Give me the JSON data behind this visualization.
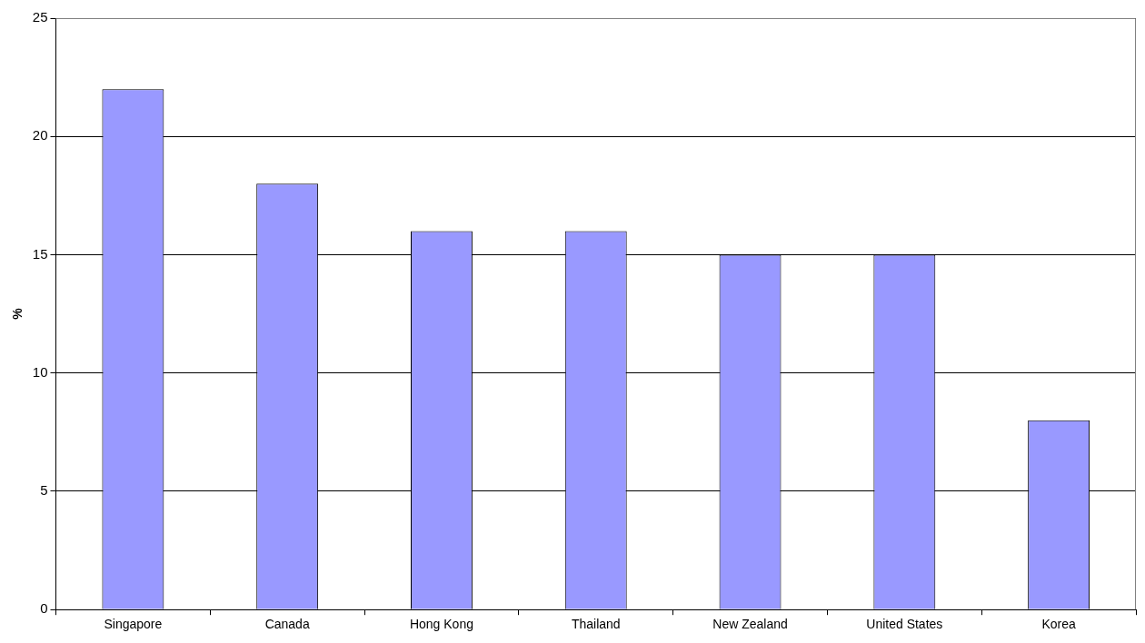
{
  "chart_data": {
    "type": "bar",
    "ylabel": "%",
    "categories": [
      "Singapore",
      "Canada",
      "Hong Kong",
      "Thailand",
      "New Zealand",
      "United States",
      "Korea"
    ],
    "values": [
      22,
      18,
      16,
      16,
      15,
      15,
      8
    ],
    "color": "#9999ff",
    "ylim": [
      0,
      25
    ],
    "yticks": [
      0,
      5,
      10,
      15,
      20,
      25
    ],
    "grid": "y",
    "legend": false
  }
}
